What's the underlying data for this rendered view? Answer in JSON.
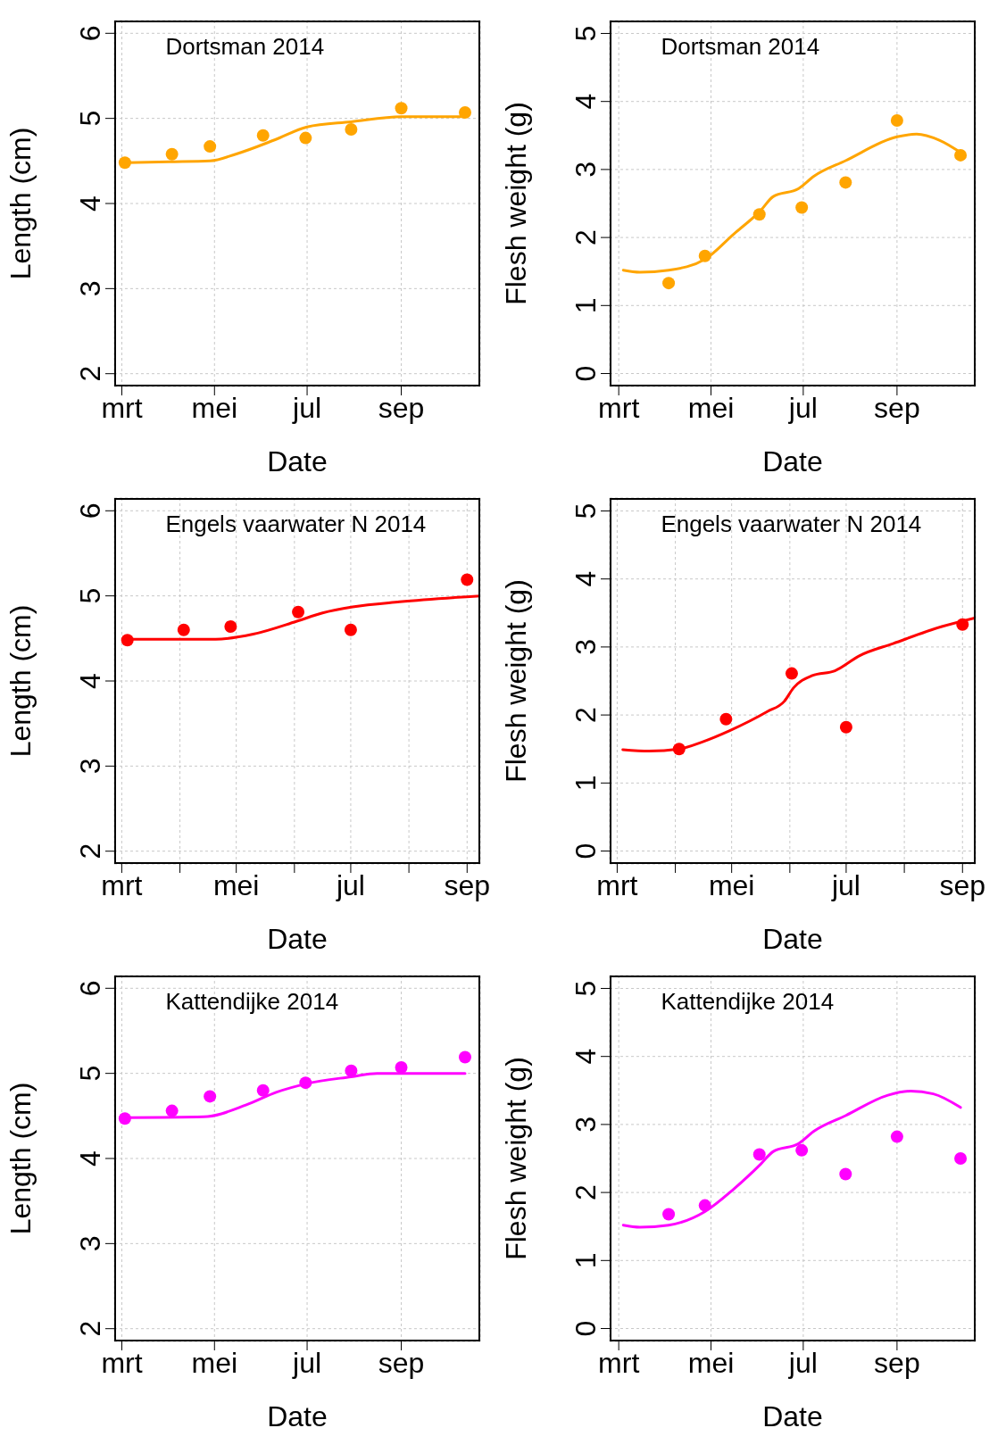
{
  "chart_data": [
    {
      "type": "scatter",
      "title": "Dortsman 2014",
      "xlabel": "Date",
      "ylabel": "Length (cm)",
      "grid": true,
      "xlim": [
        "--02-24",
        "--10-23"
      ],
      "xticks": [
        {
          "value": "--03-01",
          "label": "mrt"
        },
        {
          "value": "--05-01",
          "label": "mei"
        },
        {
          "value": "--07-01",
          "label": "jul"
        },
        {
          "value": "--09-01",
          "label": "sep"
        }
      ],
      "ylim": [
        1.85,
        6.15
      ],
      "yticks": [
        2,
        3,
        4,
        5,
        6
      ],
      "series": [
        {
          "type": "line",
          "color": "#ffa500",
          "x": [
            "--03-05",
            "--04-01",
            "--04-28",
            "--05-15",
            "--06-10",
            "--07-01",
            "--07-30",
            "--09-01",
            "--10-13"
          ],
          "values": [
            4.48,
            4.49,
            4.5,
            4.58,
            4.75,
            4.9,
            4.96,
            5.02,
            5.02
          ]
        },
        {
          "type": "scatter",
          "color": "#ffa500",
          "marker": "circle",
          "x": [
            "--03-03",
            "--04-03",
            "--04-28",
            "--06-02",
            "--06-30",
            "--07-30",
            "--09-01",
            "--10-13"
          ],
          "values": [
            4.48,
            4.58,
            4.67,
            4.8,
            4.77,
            4.87,
            5.12,
            5.07
          ]
        }
      ]
    },
    {
      "type": "scatter",
      "title": "Dortsman 2014",
      "xlabel": "Date",
      "ylabel": "Flesh weight (g)",
      "grid": true,
      "xlim": [
        "--02-23",
        "--10-23"
      ],
      "xticks": [
        {
          "value": "--03-01",
          "label": "mrt"
        },
        {
          "value": "--05-01",
          "label": "mei"
        },
        {
          "value": "--07-01",
          "label": "jul"
        },
        {
          "value": "--09-01",
          "label": "sep"
        }
      ],
      "ylim": [
        -0.19,
        5.19
      ],
      "yticks": [
        0,
        1,
        2,
        3,
        4,
        5
      ],
      "series": [
        {
          "type": "line",
          "color": "#ffa500",
          "x": [
            "--03-04",
            "--03-15",
            "--04-03",
            "--04-27",
            "--05-16",
            "--06-03",
            "--06-11",
            "--06-28",
            "--07-08",
            "--07-29",
            "--09-01",
            "--09-14",
            "--09-29",
            "--10-13"
          ],
          "values": [
            1.52,
            1.49,
            1.52,
            1.68,
            2.05,
            2.4,
            2.6,
            2.72,
            2.9,
            3.13,
            3.48,
            3.52,
            3.43,
            3.25
          ]
        },
        {
          "type": "scatter",
          "color": "#ffa500",
          "marker": "circle",
          "x": [
            "--04-03",
            "--04-27",
            "--06-02",
            "--06-30",
            "--07-29",
            "--09-01",
            "--10-13"
          ],
          "values": [
            1.33,
            1.73,
            2.34,
            2.44,
            2.81,
            3.72,
            3.21
          ]
        }
      ]
    },
    {
      "type": "scatter",
      "title": "Engels vaarwater N 2014",
      "xlabel": "Date",
      "ylabel": "Length (cm)",
      "grid": true,
      "xlim": [
        "--02-25",
        "--09-08"
      ],
      "xticks": [
        {
          "value": "--03-01",
          "label": "mrt"
        },
        {
          "value": "--04-01",
          "label": null
        },
        {
          "value": "--05-01",
          "label": "mei"
        },
        {
          "value": "--06-01",
          "label": null
        },
        {
          "value": "--07-01",
          "label": "jul"
        },
        {
          "value": "--08-01",
          "label": null
        },
        {
          "value": "--09-01",
          "label": "sep"
        }
      ],
      "ylim": [
        1.85,
        6.15
      ],
      "yticks": [
        2,
        3,
        4,
        5,
        6
      ],
      "series": [
        {
          "type": "line",
          "color": "#ff0000",
          "x": [
            "--03-04",
            "--04-20",
            "--05-10",
            "--06-02",
            "--06-16",
            "--07-02",
            "--07-27",
            "--09-08"
          ],
          "values": [
            4.49,
            4.49,
            4.55,
            4.7,
            4.8,
            4.87,
            4.93,
            5.0
          ]
        },
        {
          "type": "scatter",
          "color": "#ff0000",
          "marker": "circle",
          "x": [
            "--03-04",
            "--04-03",
            "--04-28",
            "--06-03",
            "--07-01",
            "--09-01"
          ],
          "values": [
            4.48,
            4.6,
            4.64,
            4.81,
            4.6,
            5.19
          ]
        }
      ]
    },
    {
      "type": "scatter",
      "title": "Engels vaarwater N 2014",
      "xlabel": "Date",
      "ylabel": "Flesh weight (g)",
      "grid": true,
      "xlim": [
        "--02-25",
        "--09-08"
      ],
      "xticks": [
        {
          "value": "--03-01",
          "label": "mrt"
        },
        {
          "value": "--04-01",
          "label": null
        },
        {
          "value": "--05-01",
          "label": "mei"
        },
        {
          "value": "--06-01",
          "label": null
        },
        {
          "value": "--07-01",
          "label": "jul"
        },
        {
          "value": "--08-01",
          "label": null
        },
        {
          "value": "--09-01",
          "label": "sep"
        }
      ],
      "ylim": [
        -0.19,
        5.19
      ],
      "yticks": [
        0,
        1,
        2,
        3,
        4,
        5
      ],
      "series": [
        {
          "type": "line",
          "color": "#ff0000",
          "x": [
            "--03-04",
            "--03-18",
            "--04-03",
            "--04-15",
            "--04-30",
            "--05-20",
            "--05-29",
            "--06-03",
            "--06-13",
            "--06-25",
            "--07-08",
            "--07-26",
            "--08-21",
            "--09-08"
          ],
          "values": [
            1.49,
            1.47,
            1.5,
            1.6,
            1.77,
            2.05,
            2.2,
            2.4,
            2.58,
            2.65,
            2.87,
            3.05,
            3.3,
            3.43
          ]
        },
        {
          "type": "scatter",
          "color": "#ff0000",
          "marker": "circle",
          "x": [
            "--04-03",
            "--04-28",
            "--06-02",
            "--07-01",
            "--09-01"
          ],
          "values": [
            1.5,
            1.94,
            2.61,
            1.82,
            3.33
          ]
        }
      ]
    },
    {
      "type": "scatter",
      "title": "Kattendijke 2014",
      "xlabel": "Date",
      "ylabel": "Length (cm)",
      "grid": true,
      "xlim": [
        "--02-24",
        "--10-23"
      ],
      "xticks": [
        {
          "value": "--03-01",
          "label": "mrt"
        },
        {
          "value": "--05-01",
          "label": "mei"
        },
        {
          "value": "--07-01",
          "label": "jul"
        },
        {
          "value": "--09-01",
          "label": "sep"
        }
      ],
      "ylim": [
        1.85,
        6.15
      ],
      "yticks": [
        2,
        3,
        4,
        5,
        6
      ],
      "series": [
        {
          "type": "line",
          "color": "#ff00ff",
          "x": [
            "--03-05",
            "--04-24",
            "--05-22",
            "--06-11",
            "--07-01",
            "--07-30",
            "--08-16",
            "--10-13"
          ],
          "values": [
            4.48,
            4.49,
            4.63,
            4.78,
            4.88,
            4.96,
            5.0,
            5.0
          ]
        },
        {
          "type": "scatter",
          "color": "#ff00ff",
          "marker": "circle",
          "x": [
            "--03-03",
            "--04-03",
            "--04-28",
            "--06-02",
            "--06-30",
            "--07-30",
            "--09-01",
            "--10-13"
          ],
          "values": [
            4.47,
            4.56,
            4.73,
            4.8,
            4.89,
            5.03,
            5.07,
            5.19
          ]
        }
      ]
    },
    {
      "type": "scatter",
      "title": "Kattendijke 2014",
      "xlabel": "Date",
      "ylabel": "Flesh weight (g)",
      "grid": true,
      "xlim": [
        "--02-23",
        "--10-23"
      ],
      "xticks": [
        {
          "value": "--03-01",
          "label": "mrt"
        },
        {
          "value": "--05-01",
          "label": "mei"
        },
        {
          "value": "--07-01",
          "label": "jul"
        },
        {
          "value": "--09-01",
          "label": "sep"
        }
      ],
      "ylim": [
        -0.19,
        5.19
      ],
      "yticks": [
        0,
        1,
        2,
        3,
        4,
        5
      ],
      "series": [
        {
          "type": "line",
          "color": "#ff00ff",
          "x": [
            "--03-04",
            "--03-15",
            "--04-03",
            "--04-27",
            "--05-16",
            "--06-03",
            "--06-11",
            "--06-28",
            "--07-08",
            "--07-29",
            "--08-26",
            "--09-10",
            "--09-25",
            "--10-13"
          ],
          "values": [
            1.52,
            1.49,
            1.52,
            1.72,
            2.05,
            2.42,
            2.6,
            2.72,
            2.9,
            3.13,
            3.43,
            3.49,
            3.45,
            3.25
          ]
        },
        {
          "type": "scatter",
          "color": "#ff00ff",
          "marker": "circle",
          "x": [
            "--04-03",
            "--04-27",
            "--06-02",
            "--06-30",
            "--07-29",
            "--09-01",
            "--10-13"
          ],
          "values": [
            1.68,
            1.81,
            2.56,
            2.62,
            2.27,
            2.82,
            2.5
          ]
        }
      ]
    }
  ]
}
